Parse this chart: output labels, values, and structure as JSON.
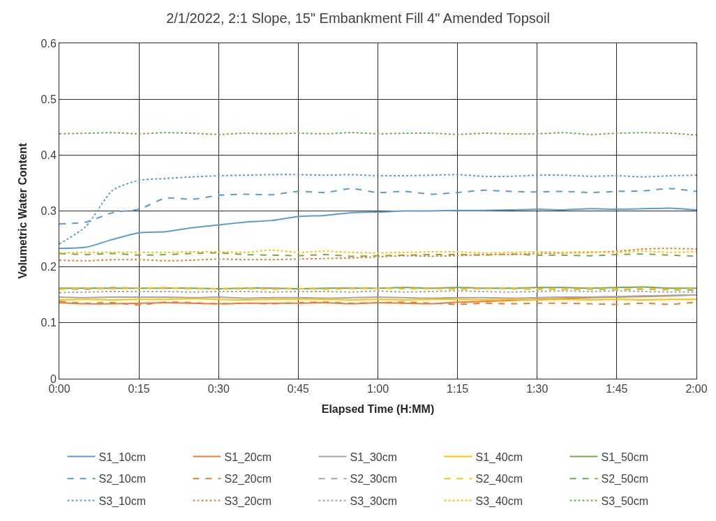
{
  "chart_data": {
    "type": "line",
    "title": "2/1/2022, 2:1 Slope, 15\" Embankment Fill 4\" Amended Topsoil",
    "xlabel": "Elapsed Time (H:MM)",
    "ylabel": "Volumetric Water Content",
    "x": [
      0,
      0.083,
      0.167,
      0.25,
      0.333,
      0.417,
      0.5,
      0.583,
      0.667,
      0.75,
      0.833,
      0.917,
      1,
      1.083,
      1.167,
      1.25,
      1.333,
      1.417,
      1.5,
      1.583,
      1.667,
      1.75,
      1.833,
      1.917,
      2
    ],
    "xlim": [
      0,
      2
    ],
    "xticks": [
      {
        "value": 0,
        "label": "0:00"
      },
      {
        "value": 0.25,
        "label": "0:15"
      },
      {
        "value": 0.5,
        "label": "0:30"
      },
      {
        "value": 0.75,
        "label": "0:45"
      },
      {
        "value": 1,
        "label": "1:00"
      },
      {
        "value": 1.25,
        "label": "1:15"
      },
      {
        "value": 1.5,
        "label": "1:30"
      },
      {
        "value": 1.75,
        "label": "1:45"
      },
      {
        "value": 2,
        "label": "2:00"
      }
    ],
    "ylim": [
      0,
      0.6
    ],
    "yticks": [
      {
        "value": 0,
        "label": "0"
      },
      0.1,
      0.2,
      0.3,
      0.4,
      0.5,
      0.6
    ],
    "grid": true,
    "legend": "bottom",
    "series": [
      {
        "name": "S1_10cm",
        "color": "#5b9bd5",
        "line_style": "solid",
        "values": [
          0.233,
          0.235,
          0.249,
          0.261,
          0.263,
          0.27,
          0.275,
          0.28,
          0.283,
          0.29,
          0.292,
          0.297,
          0.298,
          0.3,
          0.3,
          0.301,
          0.301,
          0.302,
          0.303,
          0.302,
          0.304,
          0.303,
          0.304,
          0.305,
          0.302
        ]
      },
      {
        "name": "S1_20cm",
        "color": "#ed7d31",
        "line_style": "solid",
        "values": [
          0.136,
          0.134,
          0.134,
          0.135,
          0.136,
          0.135,
          0.134,
          0.135,
          0.135,
          0.135,
          0.136,
          0.134,
          0.136,
          0.135,
          0.134,
          0.137,
          0.138,
          0.14,
          0.142,
          0.143,
          0.145,
          0.146,
          0.147,
          0.148,
          0.15
        ]
      },
      {
        "name": "S1_30cm",
        "color": "#a5a5a5",
        "line_style": "solid",
        "values": [
          0.146,
          0.145,
          0.146,
          0.146,
          0.146,
          0.145,
          0.146,
          0.144,
          0.145,
          0.145,
          0.144,
          0.145,
          0.146,
          0.145,
          0.144,
          0.145,
          0.145,
          0.144,
          0.145,
          0.146,
          0.146,
          0.147,
          0.148,
          0.149,
          0.15
        ]
      },
      {
        "name": "S1_40cm",
        "color": "#ffc000",
        "line_style": "solid",
        "values": [
          0.141,
          0.142,
          0.141,
          0.142,
          0.142,
          0.143,
          0.142,
          0.141,
          0.142,
          0.142,
          0.142,
          0.141,
          0.142,
          0.141,
          0.142,
          0.142,
          0.141,
          0.142,
          0.141,
          0.142,
          0.141,
          0.142,
          0.141,
          0.142,
          0.142
        ]
      },
      {
        "name": "S1_50cm",
        "color": "#70ad47",
        "line_style": "solid",
        "values": [
          0.162,
          0.162,
          0.162,
          0.162,
          0.162,
          0.162,
          0.161,
          0.162,
          0.162,
          0.161,
          0.162,
          0.162,
          0.162,
          0.163,
          0.162,
          0.163,
          0.162,
          0.162,
          0.163,
          0.163,
          0.162,
          0.163,
          0.164,
          0.162,
          0.162
        ]
      },
      {
        "name": "S2_10cm",
        "color": "#5b9bd5",
        "line_style": "dashed",
        "values": [
          0.277,
          0.28,
          0.297,
          0.303,
          0.323,
          0.321,
          0.328,
          0.33,
          0.329,
          0.335,
          0.333,
          0.34,
          0.333,
          0.335,
          0.33,
          0.333,
          0.337,
          0.335,
          0.334,
          0.335,
          0.333,
          0.335,
          0.336,
          0.34,
          0.335
        ]
      },
      {
        "name": "S2_20cm",
        "color": "#ed7d31",
        "line_style": "dashed",
        "values": [
          0.138,
          0.135,
          0.136,
          0.132,
          0.137,
          0.136,
          0.134,
          0.135,
          0.134,
          0.136,
          0.137,
          0.135,
          0.136,
          0.137,
          0.135,
          0.133,
          0.135,
          0.134,
          0.135,
          0.135,
          0.134,
          0.133,
          0.135,
          0.133,
          0.137
        ]
      },
      {
        "name": "S2_30cm",
        "color": "#a5a5a5",
        "line_style": "dashed",
        "values": [
          0.161,
          0.16,
          0.163,
          0.162,
          0.162,
          0.161,
          0.161,
          0.161,
          0.162,
          0.161,
          0.161,
          0.162,
          0.162,
          0.161,
          0.162,
          0.161,
          0.162,
          0.161,
          0.16,
          0.16,
          0.16,
          0.159,
          0.16,
          0.159,
          0.158
        ]
      },
      {
        "name": "S2_40cm",
        "color": "#ffc000",
        "line_style": "dashed",
        "values": [
          0.16,
          0.162,
          0.161,
          0.162,
          0.163,
          0.161,
          0.161,
          0.162,
          0.16,
          0.161,
          0.16,
          0.161,
          0.162,
          0.161,
          0.161,
          0.16,
          0.161,
          0.162,
          0.161,
          0.16,
          0.161,
          0.16,
          0.161,
          0.16,
          0.161
        ]
      },
      {
        "name": "S2_50cm",
        "color": "#70ad47",
        "line_style": "dashed",
        "values": [
          0.224,
          0.222,
          0.224,
          0.221,
          0.222,
          0.224,
          0.225,
          0.222,
          0.221,
          0.22,
          0.222,
          0.219,
          0.22,
          0.221,
          0.222,
          0.222,
          0.221,
          0.223,
          0.221,
          0.221,
          0.22,
          0.222,
          0.223,
          0.221,
          0.219
        ]
      },
      {
        "name": "S3_10cm",
        "color": "#5b9bd5",
        "line_style": "dotted",
        "values": [
          0.241,
          0.272,
          0.337,
          0.355,
          0.358,
          0.361,
          0.363,
          0.364,
          0.365,
          0.365,
          0.364,
          0.365,
          0.363,
          0.363,
          0.364,
          0.365,
          0.362,
          0.362,
          0.364,
          0.364,
          0.362,
          0.363,
          0.361,
          0.363,
          0.364
        ]
      },
      {
        "name": "S3_20cm",
        "color": "#ed7d31",
        "line_style": "dotted",
        "values": [
          0.212,
          0.211,
          0.213,
          0.213,
          0.211,
          0.212,
          0.214,
          0.213,
          0.213,
          0.214,
          0.215,
          0.216,
          0.218,
          0.22,
          0.219,
          0.22,
          0.222,
          0.222,
          0.224,
          0.225,
          0.226,
          0.228,
          0.232,
          0.233,
          0.232
        ]
      },
      {
        "name": "S3_30cm",
        "color": "#a5a5a5",
        "line_style": "dotted",
        "values": [
          0.154,
          0.155,
          0.156,
          0.156,
          0.156,
          0.155,
          0.156,
          0.156,
          0.155,
          0.156,
          0.156,
          0.155,
          0.157,
          0.155,
          0.156,
          0.157,
          0.156,
          0.155,
          0.156,
          0.157,
          0.156,
          0.157,
          0.156,
          0.155,
          0.155
        ]
      },
      {
        "name": "S3_40cm",
        "color": "#ffc000",
        "line_style": "dotted",
        "values": [
          0.225,
          0.226,
          0.226,
          0.226,
          0.226,
          0.227,
          0.227,
          0.226,
          0.23,
          0.226,
          0.228,
          0.226,
          0.225,
          0.226,
          0.227,
          0.227,
          0.225,
          0.226,
          0.227,
          0.226,
          0.227,
          0.226,
          0.228,
          0.226,
          0.227
        ]
      },
      {
        "name": "S3_50cm",
        "color": "#70ad47",
        "line_style": "dotted",
        "values": [
          0.438,
          0.439,
          0.44,
          0.438,
          0.44,
          0.439,
          0.437,
          0.439,
          0.438,
          0.439,
          0.438,
          0.44,
          0.438,
          0.439,
          0.439,
          0.437,
          0.439,
          0.438,
          0.438,
          0.44,
          0.437,
          0.439,
          0.44,
          0.439,
          0.436
        ]
      }
    ]
  }
}
